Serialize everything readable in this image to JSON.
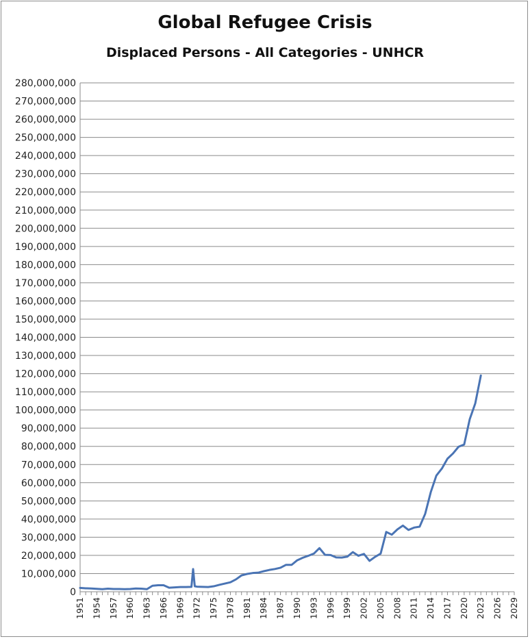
{
  "chart_data": {
    "type": "line",
    "title": "Global Refugee Crisis",
    "subtitle": "Displaced Persons - All Categories - UNHCR",
    "xlabel": "",
    "ylabel": "",
    "xlim": [
      1951,
      2029
    ],
    "ylim": [
      0,
      280000000
    ],
    "y_tick_step": 10000000,
    "y_tick_labels": [
      "0",
      "10,000,000",
      "20,000,000",
      "30,000,000",
      "40,000,000",
      "50,000,000",
      "60,000,000",
      "70,000,000",
      "80,000,000",
      "90,000,000",
      "100,000,000",
      "110,000,000",
      "120,000,000",
      "130,000,000",
      "140,000,000",
      "150,000,000",
      "160,000,000",
      "170,000,000",
      "180,000,000",
      "190,000,000",
      "200,000,000",
      "210,000,000",
      "220,000,000",
      "230,000,000",
      "240,000,000",
      "250,000,000",
      "260,000,000",
      "270,000,000",
      "280,000,000"
    ],
    "x_tick_labels": [
      "1951",
      "1954",
      "1957",
      "1960",
      "1963",
      "1966",
      "1969",
      "1972",
      "1975",
      "1978",
      "1981",
      "1984",
      "1987",
      "1990",
      "1993",
      "1996",
      "1999",
      "2002",
      "2005",
      "2008",
      "2011",
      "2014",
      "2017",
      "2020",
      "2023",
      "2026",
      "2029"
    ],
    "grid": true,
    "legend": "none",
    "line_color": "#4a74b4",
    "series": [
      {
        "x": [
          1951,
          1952,
          1953,
          1954,
          1955,
          1956,
          1957,
          1958,
          1959,
          1960,
          1961,
          1962,
          1963,
          1964,
          1965,
          1966,
          1967,
          1968,
          1969,
          1970,
          1971,
          1971.3,
          1971.6,
          1972,
          1973,
          1974,
          1975,
          1976,
          1977,
          1978,
          1979,
          1980,
          1981,
          1982,
          1983,
          1984,
          1985,
          1986,
          1987,
          1988,
          1989,
          1990,
          1991,
          1992,
          1993,
          1994,
          1995,
          1996,
          1997,
          1998,
          1999,
          2000,
          2001,
          2002,
          2003,
          2004,
          2005,
          2006,
          2007,
          2008,
          2009,
          2010,
          2011,
          2012,
          2013,
          2014,
          2015,
          2016,
          2017,
          2018,
          2019,
          2020,
          2021,
          2022,
          2023
        ],
        "values": [
          2100000,
          1900000,
          1800000,
          1600000,
          1400000,
          1700000,
          1500000,
          1500000,
          1400000,
          1500000,
          1800000,
          1700000,
          1400000,
          3300000,
          3600000,
          3600000,
          2200000,
          2400000,
          2600000,
          2600000,
          2700000,
          12500000,
          3000000,
          2800000,
          2700000,
          2600000,
          3000000,
          3800000,
          4500000,
          5200000,
          6800000,
          9000000,
          9800000,
          10300000,
          10500000,
          11300000,
          12000000,
          12500000,
          13200000,
          14800000,
          14800000,
          17300000,
          18700000,
          19800000,
          21000000,
          24000000,
          20300000,
          20200000,
          18900000,
          18800000,
          19300000,
          21800000,
          19800000,
          20800000,
          17000000,
          19200000,
          21000000,
          32900000,
          31400000,
          34300000,
          36400000,
          34000000,
          35300000,
          35800000,
          42900000,
          54800000,
          63900000,
          67800000,
          73200000,
          76100000,
          79800000,
          81000000,
          94900000,
          103700000,
          119000000
        ]
      }
    ]
  }
}
